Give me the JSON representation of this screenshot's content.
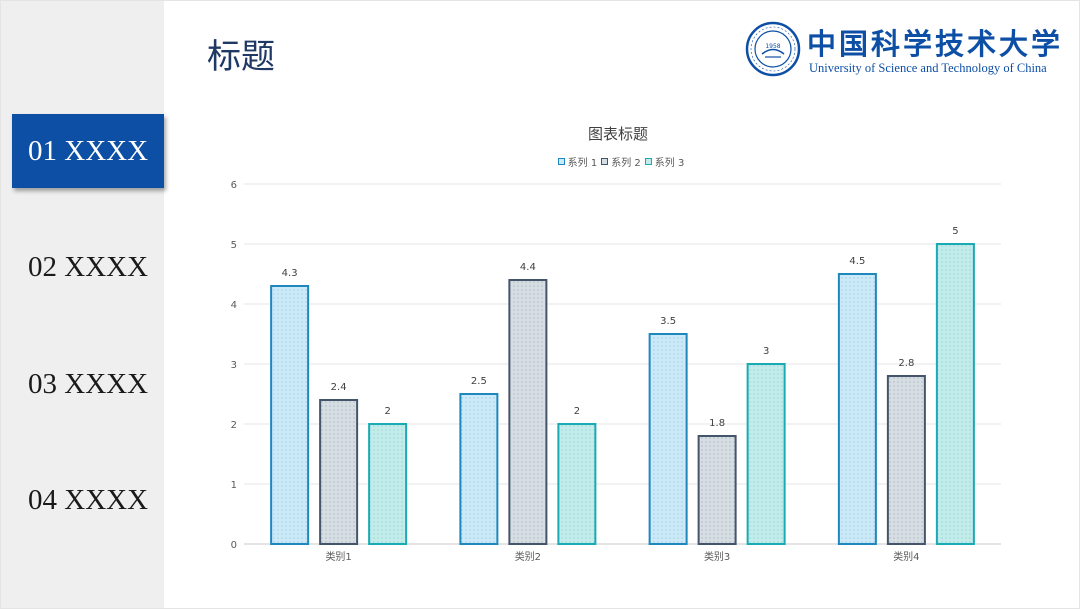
{
  "page": {
    "title": "标题"
  },
  "sidebar": {
    "items": [
      {
        "label": "01 XXXX",
        "active": true
      },
      {
        "label": "02 XXXX",
        "active": false
      },
      {
        "label": "03 XXXX",
        "active": false
      },
      {
        "label": "04 XXXX",
        "active": false
      }
    ]
  },
  "logo": {
    "name_cn": "中国科学技术大学",
    "name_en": "University of Science and Technology of China",
    "seal_text": "1958",
    "color": "#0d4fa5"
  },
  "colors": {
    "accent": "#0d4fa5",
    "title": "#1f3864"
  },
  "chart_data": {
    "type": "bar",
    "title": "图表标题",
    "categories": [
      "类别1",
      "类别2",
      "类别3",
      "类别4"
    ],
    "series": [
      {
        "name": "系列 1",
        "values": [
          4.3,
          2.5,
          3.5,
          4.5
        ],
        "fill": "#cbe9f6",
        "stroke": "#1e87be"
      },
      {
        "name": "系列 2",
        "values": [
          2.4,
          4.4,
          1.8,
          2.8
        ],
        "fill": "#d6dde3",
        "stroke": "#44546a"
      },
      {
        "name": "系列 3",
        "values": [
          2,
          2,
          3,
          5
        ],
        "fill": "#c3ebe9",
        "stroke": "#1aaab3"
      }
    ],
    "ylim": [
      0,
      6
    ],
    "yticks": [
      0,
      1,
      2,
      3,
      4,
      5,
      6
    ],
    "grid": true,
    "legend": "top",
    "data_labels": true,
    "xlabel": "",
    "ylabel": ""
  }
}
